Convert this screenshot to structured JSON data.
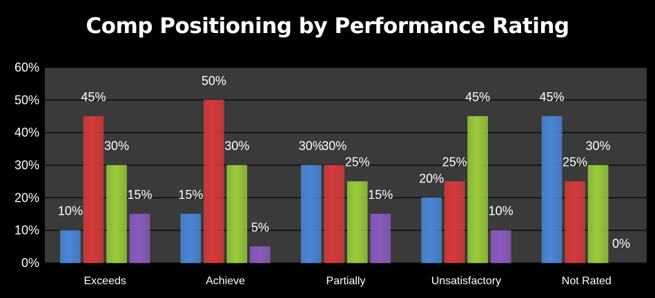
{
  "title": "Comp Positioning by Performance Rating",
  "colors": {
    "background": "#000000",
    "plot_background": "#3a3a3a",
    "grid": "#0a0a0a",
    "series": [
      "#4a86d8",
      "#d63a3a",
      "#9acb3a",
      "#8a5bbf"
    ]
  },
  "chart_data": {
    "type": "bar",
    "title": "Comp Positioning by Performance Rating",
    "xlabel": "",
    "ylabel": "",
    "categories": [
      "Exceeds",
      "Achieve",
      "Partially",
      "Unsatisfactory",
      "Not Rated"
    ],
    "series": [
      {
        "values": [
          10,
          15,
          30,
          20,
          45
        ],
        "labels": [
          "10%",
          "15%",
          "30%",
          "20%",
          "45%"
        ]
      },
      {
        "values": [
          45,
          50,
          30,
          25,
          25
        ],
        "labels": [
          "45%",
          "50%",
          "30%",
          "25%",
          "25%"
        ]
      },
      {
        "values": [
          30,
          30,
          25,
          45,
          30
        ],
        "labels": [
          "30%",
          "30%",
          "25%",
          "45%",
          "30%"
        ]
      },
      {
        "values": [
          15,
          5,
          15,
          10,
          0
        ],
        "labels": [
          "15%",
          "5%",
          "15%",
          "10%",
          "0%"
        ]
      }
    ],
    "ylim": [
      0,
      60
    ],
    "yticks": [
      "0%",
      "10%",
      "20%",
      "30%",
      "40%",
      "50%",
      "60%"
    ],
    "grid": true,
    "legend": "none"
  }
}
